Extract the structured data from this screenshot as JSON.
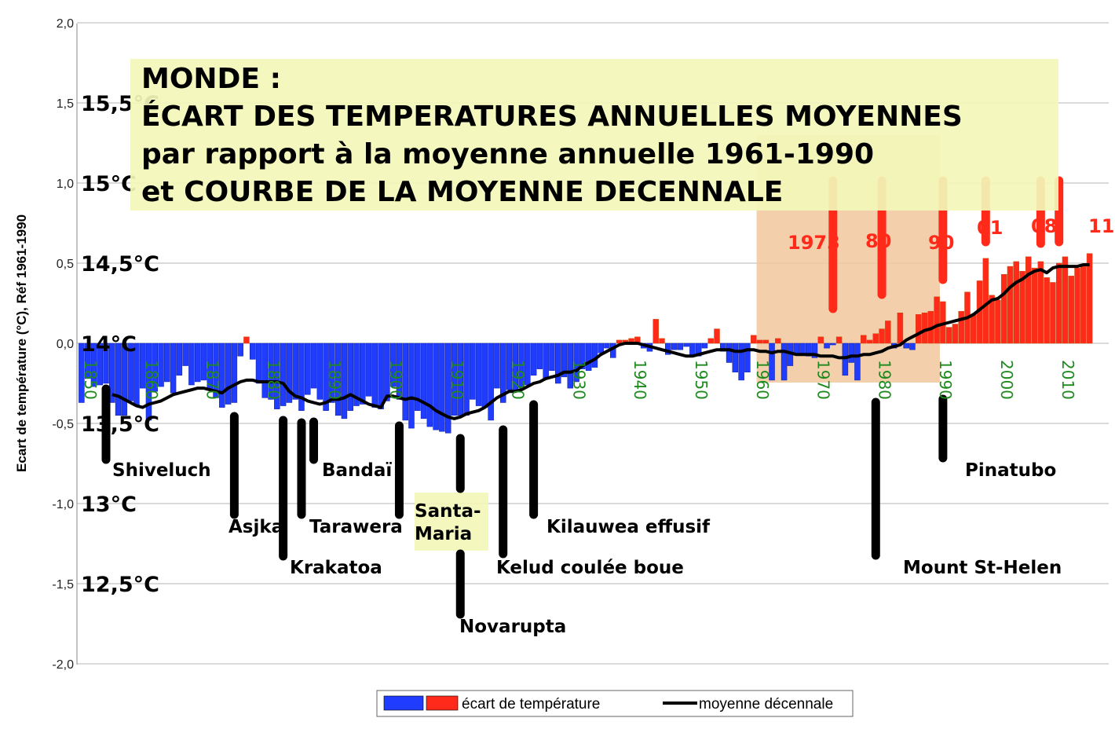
{
  "chart_data": {
    "type": "bar",
    "title_lines": [
      "MONDE :",
      "ÉCART DES TEMPERATURES ANNUELLES MOYENNES",
      "par rapport à la moyenne annuelle 1961-1990",
      "et COURBE DE LA MOYENNE DECENNALE"
    ],
    "ylabel": "Ecart de température (°C), Réf 1961-1990",
    "ylim": [
      -2.0,
      2.0
    ],
    "yticks": [
      "-2,0",
      "-1,5",
      "-1,0",
      "-0,5",
      "0,0",
      "0,5",
      "1,0",
      "1,5",
      "2,0"
    ],
    "ytick_values": [
      -2.0,
      -1.5,
      -1.0,
      -0.5,
      0.0,
      0.5,
      1.0,
      1.5,
      2.0
    ],
    "xticks": [
      "1850",
      "1860",
      "1870",
      "1880",
      "1890",
      "1900",
      "1910",
      "1920",
      "1930",
      "1940",
      "1950",
      "1960",
      "1970",
      "1980",
      "1990",
      "2000",
      "2010"
    ],
    "xtick_values": [
      1850,
      1860,
      1870,
      1880,
      1890,
      1900,
      1910,
      1920,
      1930,
      1940,
      1950,
      1960,
      1970,
      1980,
      1990,
      2000,
      2010
    ],
    "year_start": 1850,
    "grid": true,
    "series": [
      {
        "name": "écart de température",
        "color_negative": "#1f3cff",
        "color_positive": "#ff2a1a",
        "values": [
          -0.37,
          -0.22,
          -0.27,
          -0.26,
          -0.25,
          -0.37,
          -0.45,
          -0.45,
          -0.36,
          -0.39,
          -0.28,
          -0.48,
          -0.3,
          -0.27,
          -0.24,
          -0.31,
          -0.2,
          -0.14,
          -0.26,
          -0.24,
          -0.23,
          -0.29,
          -0.34,
          -0.4,
          -0.38,
          -0.37,
          -0.08,
          0.04,
          -0.1,
          -0.25,
          -0.34,
          -0.35,
          -0.41,
          -0.39,
          -0.37,
          -0.35,
          -0.42,
          -0.32,
          -0.28,
          -0.35,
          -0.42,
          -0.37,
          -0.45,
          -0.47,
          -0.42,
          -0.39,
          -0.38,
          -0.33,
          -0.4,
          -0.41,
          -0.36,
          -0.27,
          -0.35,
          -0.48,
          -0.53,
          -0.42,
          -0.47,
          -0.52,
          -0.54,
          -0.55,
          -0.56,
          -0.45,
          -0.45,
          -0.45,
          -0.35,
          -0.39,
          -0.4,
          -0.48,
          -0.28,
          -0.37,
          -0.29,
          -0.3,
          -0.28,
          -0.26,
          -0.2,
          -0.16,
          -0.22,
          -0.17,
          -0.25,
          -0.21,
          -0.28,
          -0.24,
          -0.16,
          -0.17,
          -0.15,
          -0.06,
          -0.03,
          -0.09,
          0.02,
          0.02,
          0.03,
          0.04,
          -0.03,
          -0.05,
          0.15,
          0.03,
          -0.07,
          -0.04,
          -0.04,
          -0.02,
          -0.07,
          -0.08,
          -0.03,
          0.03,
          0.09,
          -0.05,
          -0.12,
          -0.18,
          -0.23,
          -0.18,
          0.05,
          0.02,
          0.02,
          -0.23,
          0.03,
          -0.23,
          -0.14,
          -0.07,
          -0.07,
          -0.08,
          -0.09,
          0.04,
          -0.03,
          -0.01,
          0.04,
          -0.2,
          -0.12,
          -0.23,
          0.05,
          0.02,
          0.06,
          0.09,
          0.14,
          -0.03,
          0.19,
          -0.03,
          -0.04,
          0.18,
          0.19,
          0.2,
          0.29,
          0.26,
          0.1,
          0.12,
          0.2,
          0.32,
          0.18,
          0.39,
          0.53,
          0.3,
          0.27,
          0.43,
          0.48,
          0.51,
          0.45,
          0.54,
          0.47,
          0.51,
          0.41,
          0.38,
          0.5,
          0.54,
          0.42,
          0.47,
          0.48,
          0.56
        ]
      },
      {
        "name": "moyenne décennale",
        "color": "#000000",
        "values": [
          null,
          null,
          null,
          null,
          null,
          -0.32,
          -0.33,
          -0.35,
          -0.37,
          -0.39,
          -0.4,
          -0.38,
          -0.37,
          -0.36,
          -0.34,
          -0.32,
          -0.31,
          -0.3,
          -0.29,
          -0.28,
          -0.28,
          -0.29,
          -0.3,
          -0.31,
          -0.28,
          -0.26,
          -0.24,
          -0.23,
          -0.23,
          -0.24,
          -0.24,
          -0.24,
          -0.24,
          -0.25,
          -0.3,
          -0.33,
          -0.34,
          -0.36,
          -0.37,
          -0.38,
          -0.37,
          -0.35,
          -0.35,
          -0.34,
          -0.32,
          -0.34,
          -0.36,
          -0.38,
          -0.39,
          -0.4,
          -0.33,
          -0.33,
          -0.34,
          -0.35,
          -0.34,
          -0.35,
          -0.37,
          -0.39,
          -0.42,
          -0.44,
          -0.46,
          -0.47,
          -0.46,
          -0.44,
          -0.43,
          -0.42,
          -0.4,
          -0.37,
          -0.34,
          -0.32,
          -0.3,
          -0.3,
          -0.29,
          -0.27,
          -0.25,
          -0.24,
          -0.22,
          -0.21,
          -0.2,
          -0.18,
          -0.18,
          -0.17,
          -0.14,
          -0.12,
          -0.1,
          -0.07,
          -0.05,
          -0.03,
          -0.01,
          0.0,
          0.0,
          0.0,
          -0.01,
          -0.02,
          -0.03,
          -0.04,
          -0.05,
          -0.06,
          -0.07,
          -0.08,
          -0.08,
          -0.07,
          -0.06,
          -0.05,
          -0.04,
          -0.04,
          -0.04,
          -0.05,
          -0.05,
          -0.04,
          -0.04,
          -0.05,
          -0.05,
          -0.06,
          -0.05,
          -0.05,
          -0.06,
          -0.07,
          -0.07,
          -0.07,
          -0.07,
          -0.08,
          -0.08,
          -0.08,
          -0.09,
          -0.09,
          -0.08,
          -0.08,
          -0.07,
          -0.07,
          -0.06,
          -0.05,
          -0.03,
          -0.02,
          -0.01,
          0.02,
          0.04,
          0.06,
          0.08,
          0.09,
          0.11,
          0.12,
          0.13,
          0.14,
          0.15,
          0.16,
          0.18,
          0.21,
          0.24,
          0.27,
          0.28,
          0.31,
          0.35,
          0.38,
          0.4,
          0.43,
          0.45,
          0.46,
          0.44,
          0.47,
          0.48,
          0.48,
          0.48,
          0.48,
          0.49,
          0.49
        ]
      }
    ],
    "absolute_scale": [
      {
        "label": "15,5°C",
        "value": 1.5
      },
      {
        "label": "15°C",
        "value": 1.0
      },
      {
        "label": "14,5°C",
        "value": 0.5
      },
      {
        "label": "14°C",
        "value": 0.0
      },
      {
        "label": "13,5°C",
        "value": -0.5
      },
      {
        "label": "13°C",
        "value": -1.0
      },
      {
        "label": "12,5°C",
        "value": -1.5
      }
    ],
    "reference_period": [
      1961,
      1990
    ],
    "hot_year_annotations": [
      {
        "label": "1973",
        "year": 1973
      },
      {
        "label": "80",
        "year": 1981
      },
      {
        "label": "90",
        "year": 1991
      },
      {
        "label": "01",
        "year": 1998
      },
      {
        "label": "08",
        "year": 2007
      },
      {
        "label": "11",
        "year": 2010
      }
    ],
    "eruptions": [
      {
        "name": "Shiveluch",
        "year": 1854
      },
      {
        "name": "Asjka",
        "year": 1875
      },
      {
        "name": "Krakatoa",
        "year": 1883
      },
      {
        "name": "Tarawera",
        "year": 1886
      },
      {
        "name": "Bandaï",
        "year": 1888
      },
      {
        "name": "Santa-Maria",
        "year": 1902
      },
      {
        "name": "Novarupta",
        "year": 1912
      },
      {
        "name": "Kelud coulée boue",
        "year": 1919
      },
      {
        "name": "Kilauwea effusif",
        "year": 1924
      },
      {
        "name": "Mount St-Helen",
        "year": 1980
      },
      {
        "name": "Pinatubo",
        "year": 1991
      }
    ],
    "legend": {
      "placement": "bottom",
      "bar_label": "écart de température",
      "line_label": "moyenne décennale"
    }
  }
}
